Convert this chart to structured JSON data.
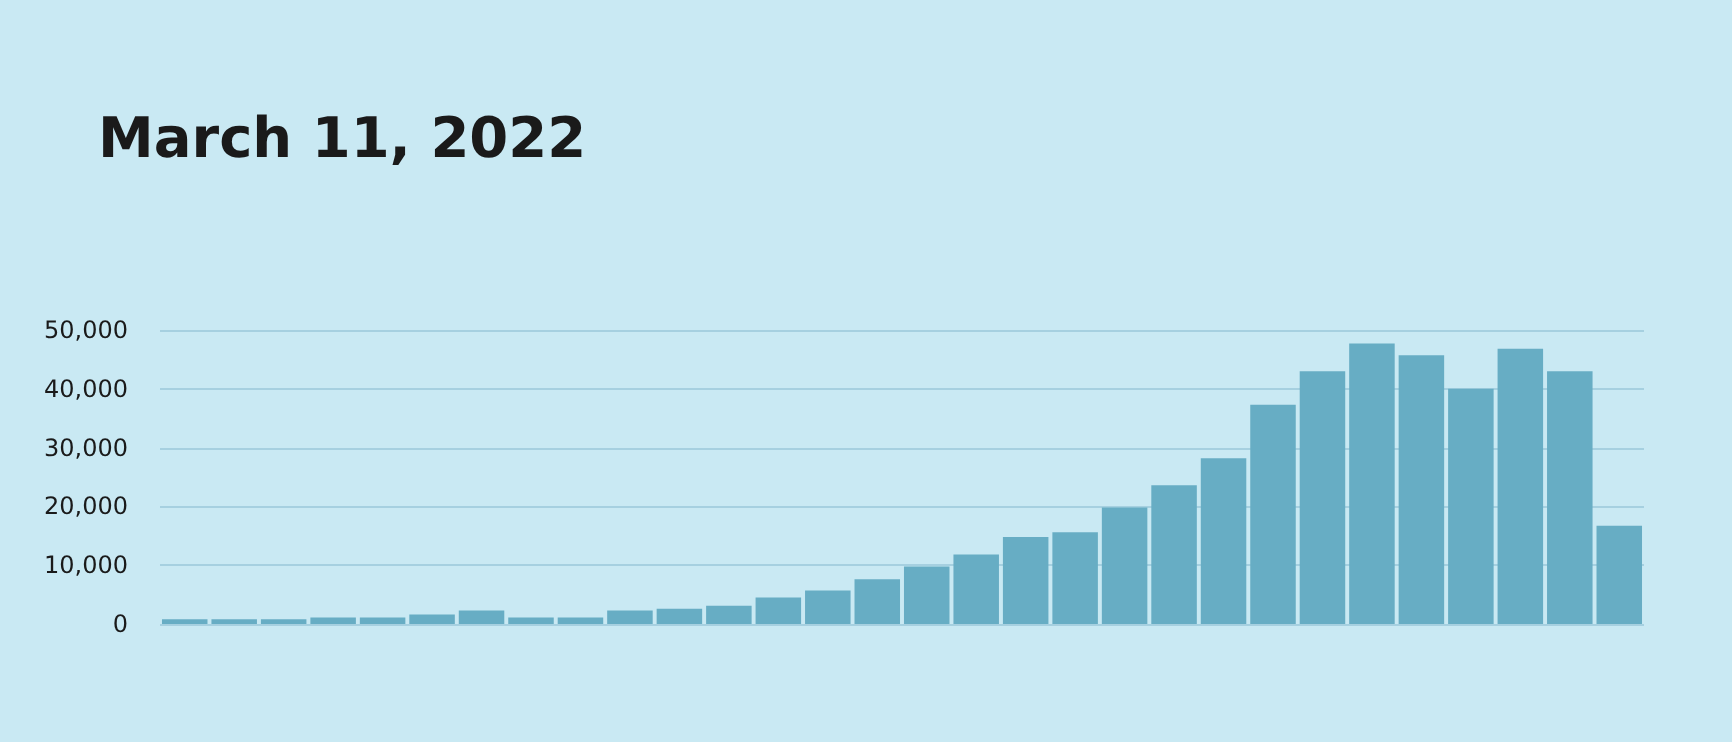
{
  "chart_data": {
    "type": "bar",
    "title": "March 11, 2022",
    "categories": [
      null,
      null,
      null,
      null,
      null,
      null,
      null,
      null,
      null,
      null,
      null,
      null,
      null,
      null,
      null,
      null,
      null,
      null,
      null,
      null,
      null,
      null,
      null,
      null,
      null,
      null,
      null,
      null,
      null,
      null
    ],
    "values": [
      800,
      800,
      800,
      1100,
      1100,
      1600,
      2300,
      1100,
      1100,
      2300,
      2600,
      3100,
      4500,
      5700,
      7600,
      9800,
      11800,
      14800,
      15600,
      19800,
      23600,
      28200,
      37300,
      43000,
      47700,
      45700,
      40000,
      46800,
      43000,
      16700
    ],
    "color": "#67adc4",
    "ylim": [
      0,
      50000
    ],
    "yticks": [
      0,
      {
        "value": 10000,
        "label": "10,000"
      },
      {
        "value": 20000,
        "label": "20,000"
      },
      {
        "value": 30000,
        "label": "30,000"
      },
      {
        "value": 40000,
        "label": "40,000"
      },
      {
        "value": 50000,
        "label": "50,000"
      }
    ],
    "grid": "y"
  }
}
